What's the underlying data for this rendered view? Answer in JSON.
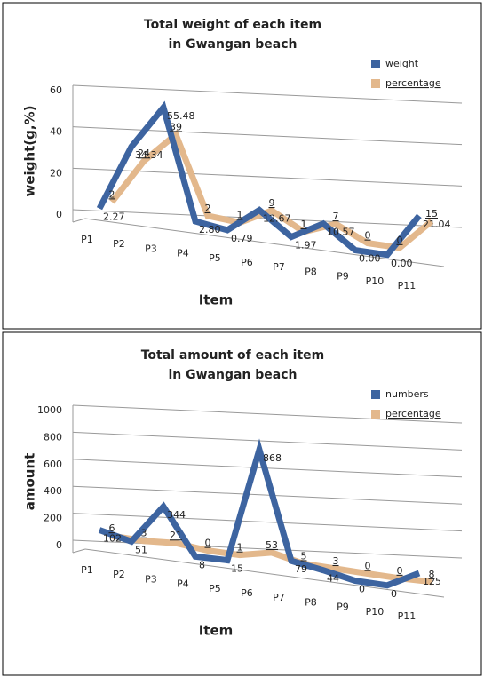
{
  "chart_data": [
    {
      "type": "line3d",
      "title": [
        "Total weight of each item",
        "in Gwangan beach"
      ],
      "ylabel": "weight(g,%)",
      "xlabel": "Item",
      "categories": [
        "P1",
        "P2",
        "P3",
        "P4",
        "P5",
        "P6",
        "P7",
        "P8",
        "P9",
        "P10",
        "P11"
      ],
      "series": [
        {
          "name": "weight",
          "color": "#3d64a0",
          "values": [
            2.27,
            34.34,
            55.48,
            2.8,
            0.79,
            12.67,
            1.97,
            10.57,
            0,
            0,
            21.04
          ],
          "value_labels": [
            "2.27",
            "34.34",
            "55.48",
            "2.80",
            "0.79",
            "12.67",
            "1.97",
            "10.57",
            "0.00",
            "0.00",
            "21.04"
          ]
        },
        {
          "name": "percentage",
          "color": "#e3b88c",
          "values": [
            2,
            24,
            39,
            2,
            1,
            9,
            1,
            7,
            0,
            0,
            15
          ]
        }
      ],
      "ylim": [
        0,
        60
      ],
      "yticks": [
        0,
        20,
        40,
        60
      ],
      "grid": true,
      "legend": "top-right"
    },
    {
      "type": "line3d",
      "title": [
        "Total amount of each item",
        "in Gwangan beach"
      ],
      "ylabel": "amount",
      "xlabel": "Item",
      "categories": [
        "P1",
        "P2",
        "P3",
        "P4",
        "P5",
        "P6",
        "P7",
        "P8",
        "P9",
        "P10",
        "P11"
      ],
      "series": [
        {
          "name": "numbers",
          "color": "#3d64a0",
          "values": [
            102,
            51,
            344,
            8,
            15,
            868,
            79,
            44,
            0,
            0,
            125
          ]
        },
        {
          "name": "percentage",
          "color": "#e3b88c",
          "values": [
            6,
            3,
            21,
            0,
            1,
            53,
            5,
            3,
            0,
            0,
            8
          ]
        }
      ],
      "ylim": [
        0,
        1000
      ],
      "yticks": [
        0,
        200,
        400,
        600,
        800,
        1000
      ],
      "grid": true,
      "legend": "top-right"
    }
  ]
}
